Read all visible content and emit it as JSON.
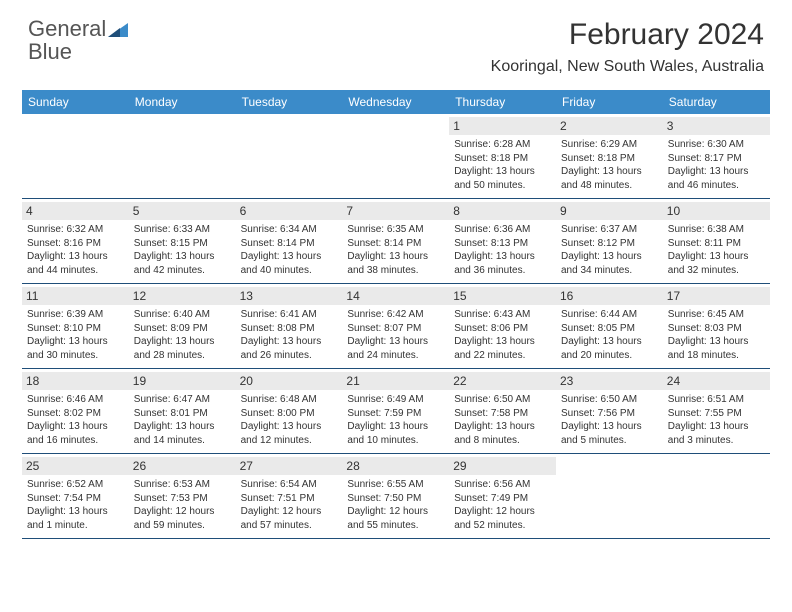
{
  "logo": {
    "text1": "General",
    "text2": "Blue"
  },
  "title": "February 2024",
  "location": "Kooringal, New South Wales, Australia",
  "dow": [
    "Sunday",
    "Monday",
    "Tuesday",
    "Wednesday",
    "Thursday",
    "Friday",
    "Saturday"
  ],
  "colors": {
    "header_bg": "#3b8bc9",
    "header_text": "#ffffff",
    "daynum_bg": "#eaeaea",
    "border": "#1f4e79",
    "logo_shape": "#3b8bc9"
  },
  "weeks": [
    [
      {
        "empty": true
      },
      {
        "empty": true
      },
      {
        "empty": true
      },
      {
        "empty": true
      },
      {
        "n": "1",
        "sr": "6:28 AM",
        "ss": "8:18 PM",
        "d1": "13 hours",
        "d2": "and 50 minutes."
      },
      {
        "n": "2",
        "sr": "6:29 AM",
        "ss": "8:18 PM",
        "d1": "13 hours",
        "d2": "and 48 minutes."
      },
      {
        "n": "3",
        "sr": "6:30 AM",
        "ss": "8:17 PM",
        "d1": "13 hours",
        "d2": "and 46 minutes."
      }
    ],
    [
      {
        "n": "4",
        "sr": "6:32 AM",
        "ss": "8:16 PM",
        "d1": "13 hours",
        "d2": "and 44 minutes."
      },
      {
        "n": "5",
        "sr": "6:33 AM",
        "ss": "8:15 PM",
        "d1": "13 hours",
        "d2": "and 42 minutes."
      },
      {
        "n": "6",
        "sr": "6:34 AM",
        "ss": "8:14 PM",
        "d1": "13 hours",
        "d2": "and 40 minutes."
      },
      {
        "n": "7",
        "sr": "6:35 AM",
        "ss": "8:14 PM",
        "d1": "13 hours",
        "d2": "and 38 minutes."
      },
      {
        "n": "8",
        "sr": "6:36 AM",
        "ss": "8:13 PM",
        "d1": "13 hours",
        "d2": "and 36 minutes."
      },
      {
        "n": "9",
        "sr": "6:37 AM",
        "ss": "8:12 PM",
        "d1": "13 hours",
        "d2": "and 34 minutes."
      },
      {
        "n": "10",
        "sr": "6:38 AM",
        "ss": "8:11 PM",
        "d1": "13 hours",
        "d2": "and 32 minutes."
      }
    ],
    [
      {
        "n": "11",
        "sr": "6:39 AM",
        "ss": "8:10 PM",
        "d1": "13 hours",
        "d2": "and 30 minutes."
      },
      {
        "n": "12",
        "sr": "6:40 AM",
        "ss": "8:09 PM",
        "d1": "13 hours",
        "d2": "and 28 minutes."
      },
      {
        "n": "13",
        "sr": "6:41 AM",
        "ss": "8:08 PM",
        "d1": "13 hours",
        "d2": "and 26 minutes."
      },
      {
        "n": "14",
        "sr": "6:42 AM",
        "ss": "8:07 PM",
        "d1": "13 hours",
        "d2": "and 24 minutes."
      },
      {
        "n": "15",
        "sr": "6:43 AM",
        "ss": "8:06 PM",
        "d1": "13 hours",
        "d2": "and 22 minutes."
      },
      {
        "n": "16",
        "sr": "6:44 AM",
        "ss": "8:05 PM",
        "d1": "13 hours",
        "d2": "and 20 minutes."
      },
      {
        "n": "17",
        "sr": "6:45 AM",
        "ss": "8:03 PM",
        "d1": "13 hours",
        "d2": "and 18 minutes."
      }
    ],
    [
      {
        "n": "18",
        "sr": "6:46 AM",
        "ss": "8:02 PM",
        "d1": "13 hours",
        "d2": "and 16 minutes."
      },
      {
        "n": "19",
        "sr": "6:47 AM",
        "ss": "8:01 PM",
        "d1": "13 hours",
        "d2": "and 14 minutes."
      },
      {
        "n": "20",
        "sr": "6:48 AM",
        "ss": "8:00 PM",
        "d1": "13 hours",
        "d2": "and 12 minutes."
      },
      {
        "n": "21",
        "sr": "6:49 AM",
        "ss": "7:59 PM",
        "d1": "13 hours",
        "d2": "and 10 minutes."
      },
      {
        "n": "22",
        "sr": "6:50 AM",
        "ss": "7:58 PM",
        "d1": "13 hours",
        "d2": "and 8 minutes."
      },
      {
        "n": "23",
        "sr": "6:50 AM",
        "ss": "7:56 PM",
        "d1": "13 hours",
        "d2": "and 5 minutes."
      },
      {
        "n": "24",
        "sr": "6:51 AM",
        "ss": "7:55 PM",
        "d1": "13 hours",
        "d2": "and 3 minutes."
      }
    ],
    [
      {
        "n": "25",
        "sr": "6:52 AM",
        "ss": "7:54 PM",
        "d1": "13 hours",
        "d2": "and 1 minute."
      },
      {
        "n": "26",
        "sr": "6:53 AM",
        "ss": "7:53 PM",
        "d1": "12 hours",
        "d2": "and 59 minutes."
      },
      {
        "n": "27",
        "sr": "6:54 AM",
        "ss": "7:51 PM",
        "d1": "12 hours",
        "d2": "and 57 minutes."
      },
      {
        "n": "28",
        "sr": "6:55 AM",
        "ss": "7:50 PM",
        "d1": "12 hours",
        "d2": "and 55 minutes."
      },
      {
        "n": "29",
        "sr": "6:56 AM",
        "ss": "7:49 PM",
        "d1": "12 hours",
        "d2": "and 52 minutes."
      },
      {
        "empty": true
      },
      {
        "empty": true
      }
    ]
  ],
  "labels": {
    "sunrise": "Sunrise: ",
    "sunset": "Sunset: ",
    "daylight": "Daylight: "
  }
}
